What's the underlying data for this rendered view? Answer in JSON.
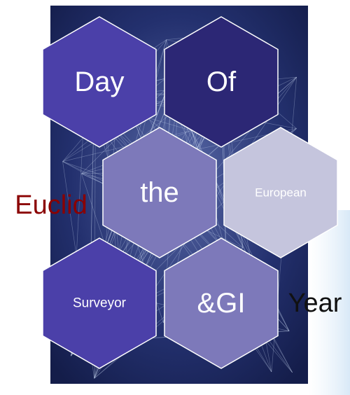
{
  "nodes": [
    {
      "label": "Day"
    },
    {
      "label": "Of"
    },
    {
      "label": "the"
    },
    {
      "label": "European"
    },
    {
      "label": "Surveyor"
    },
    {
      "label": "&GI"
    }
  ],
  "side_labels": [
    {
      "label": "Euclid"
    },
    {
      "label": "Year"
    }
  ]
}
